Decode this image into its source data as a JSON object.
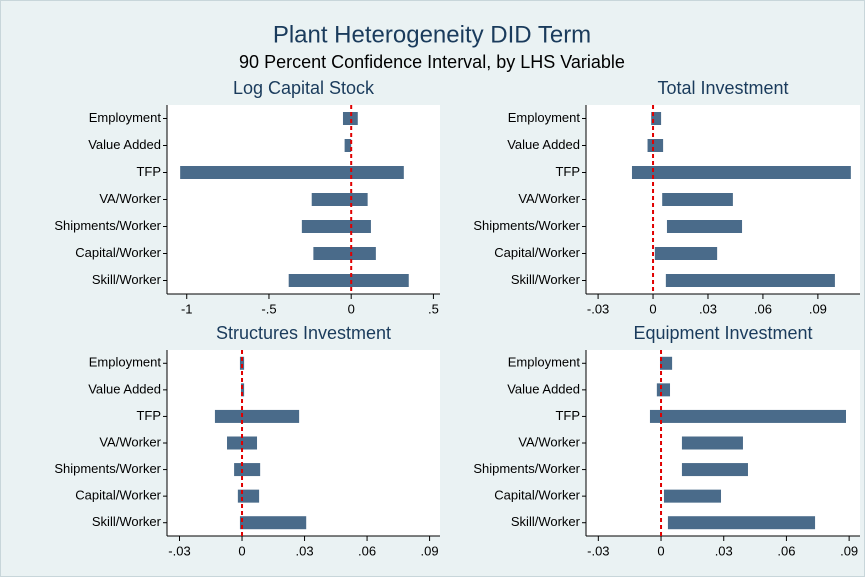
{
  "title": "Plant Heterogeneity DID Term",
  "subtitle": "90 Percent Confidence Interval, by LHS Variable",
  "chart_data": [
    {
      "type": "range_bar",
      "title": "Log Capital Stock",
      "categories": [
        "Employment",
        "Value Added",
        "TFP",
        "VA/Worker",
        "Shipments/Worker",
        "Capital/Worker",
        "Skill/Worker"
      ],
      "lower": [
        -0.05,
        -0.04,
        -1.04,
        -0.24,
        -0.3,
        -0.23,
        -0.38
      ],
      "upper": [
        0.04,
        0.0,
        0.32,
        0.1,
        0.12,
        0.15,
        0.35
      ],
      "color": "#4a6b8a",
      "xline": 0,
      "xline_color": "#e00000",
      "xlim": [
        -1.12,
        0.54
      ],
      "xticks": [
        -1,
        {
          "value": -0.5,
          "label": "-.5"
        },
        0,
        {
          "value": 0.5,
          "label": ".5"
        }
      ]
    },
    {
      "type": "range_bar",
      "title": "Total Investment",
      "categories": [
        "Employment",
        "Value Added",
        "TFP",
        "VA/Worker",
        "Shipments/Worker",
        "Capital/Worker",
        "Skill/Worker"
      ],
      "lower": [
        -0.001,
        -0.003,
        -0.0115,
        0.005,
        0.0076,
        0.001,
        0.007
      ],
      "upper": [
        0.0044,
        0.0055,
        0.108,
        0.0436,
        0.0486,
        0.035,
        0.0993
      ],
      "color": "#4a6b8a",
      "xline": 0,
      "xline_color": "#e00000",
      "xlim": [
        -0.0366,
        0.113
      ],
      "xticks": [
        {
          "value": -0.03,
          "label": "-.03"
        },
        0,
        {
          "value": 0.03,
          "label": ".03"
        },
        {
          "value": 0.06,
          "label": ".06"
        },
        {
          "value": 0.09,
          "label": ".09"
        }
      ]
    },
    {
      "type": "range_bar",
      "title": "Structures Investment",
      "categories": [
        "Employment",
        "Value Added",
        "TFP",
        "VA/Worker",
        "Shipments/Worker",
        "Capital/Worker",
        "Skill/Worker"
      ],
      "lower": [
        -0.001,
        -0.0005,
        -0.013,
        -0.0072,
        -0.0038,
        -0.002,
        -0.001
      ],
      "upper": [
        0.001,
        0.001,
        0.0274,
        0.0072,
        0.0087,
        0.0082,
        0.0308
      ],
      "color": "#4a6b8a",
      "xline": 0,
      "xline_color": "#e00000",
      "xlim": [
        -0.036,
        0.095
      ],
      "xticks": [
        {
          "value": -0.03,
          "label": "-.03"
        },
        0,
        {
          "value": 0.03,
          "label": ".03"
        },
        {
          "value": 0.06,
          "label": ".06"
        },
        {
          "value": 0.09,
          "label": ".09"
        }
      ]
    },
    {
      "type": "range_bar",
      "title": "Equipment Investment",
      "categories": [
        "Employment",
        "Value Added",
        "TFP",
        "VA/Worker",
        "Shipments/Worker",
        "Capital/Worker",
        "Skill/Worker"
      ],
      "lower": [
        -0.0005,
        -0.002,
        -0.0053,
        0.01,
        0.01,
        0.0014,
        0.0033
      ],
      "upper": [
        0.0053,
        0.0043,
        0.0885,
        0.0392,
        0.0416,
        0.0287,
        0.0737
      ],
      "color": "#4a6b8a",
      "xline": 0,
      "xline_color": "#e00000",
      "xlim": [
        -0.0359,
        0.0952
      ],
      "xticks": [
        {
          "value": -0.03,
          "label": "-.03"
        },
        0,
        {
          "value": 0.03,
          "label": ".03"
        },
        {
          "value": 0.06,
          "label": ".06"
        },
        {
          "value": 0.09,
          "label": ".09"
        }
      ]
    }
  ]
}
